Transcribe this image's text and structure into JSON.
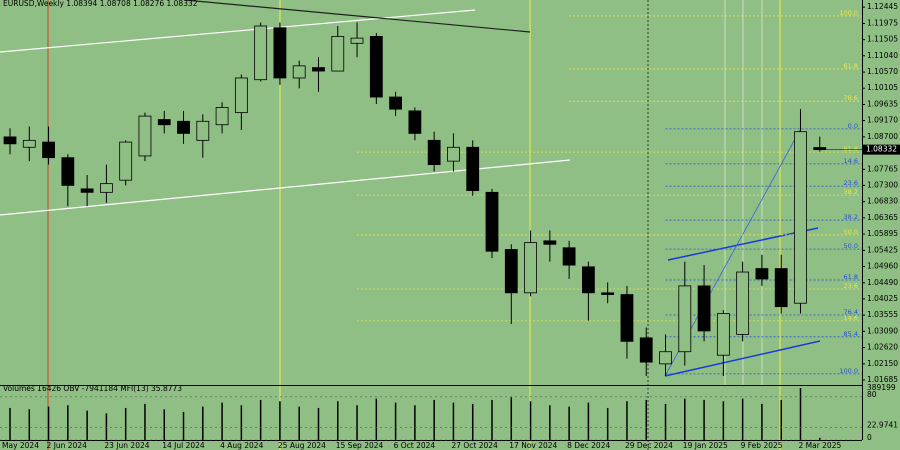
{
  "chart_data": {
    "type": "candlestick",
    "title": "EURUSD,Weekly  1.08394 1.08708 1.08276 1.08332",
    "indicator_label": "Volumes 16426  OBV -7941184  MFI(13) 35.8773",
    "partial_date_label": "May 2024",
    "categories": [
      null,
      null,
      "2 Jun 2024",
      null,
      null,
      "23 Jun 2024",
      null,
      null,
      "14 Jul 2024",
      null,
      null,
      "4 Aug 2024",
      null,
      null,
      "25 Aug 2024",
      null,
      null,
      "15 Sep 2024",
      null,
      null,
      "6 Oct 2024",
      null,
      null,
      "27 Oct 2024",
      null,
      null,
      "17 Nov 2024",
      null,
      null,
      "8 Dec 2024",
      null,
      null,
      "29 Dec 2024",
      null,
      null,
      "19 Jan 2025",
      null,
      null,
      "9 Feb 2025",
      null,
      null,
      "2 Mar 2025",
      null
    ],
    "open": [
      1.087,
      1.084,
      1.0855,
      1.081,
      1.072,
      1.071,
      1.0745,
      1.0815,
      1.092,
      1.0915,
      1.086,
      1.0905,
      1.094,
      1.1035,
      1.1185,
      1.104,
      1.107,
      1.106,
      1.114,
      1.116,
      1.0985,
      1.0945,
      1.086,
      1.08,
      1.084,
      1.071,
      1.0545,
      1.042,
      1.057,
      1.055,
      1.0495,
      1.042,
      1.0415,
      1.029,
      1.0215,
      1.025,
      1.044,
      1.024,
      1.03,
      1.049,
      1.049,
      1.039,
      1.08394
    ],
    "high": [
      1.0895,
      1.09,
      1.09,
      1.082,
      1.076,
      1.079,
      1.086,
      1.094,
      1.0945,
      1.0945,
      1.0935,
      1.097,
      1.105,
      1.12,
      1.12,
      1.109,
      1.11,
      1.119,
      1.12,
      1.117,
      1.1,
      1.0955,
      1.0885,
      1.088,
      1.086,
      1.072,
      1.056,
      1.06,
      1.06,
      1.057,
      1.051,
      1.045,
      1.044,
      1.032,
      1.03,
      1.051,
      1.05,
      1.037,
      1.051,
      1.053,
      1.053,
      1.095,
      1.08708
    ],
    "low": [
      1.082,
      1.08,
      1.079,
      1.067,
      1.067,
      1.068,
      1.073,
      1.08,
      1.088,
      1.085,
      1.081,
      1.088,
      1.089,
      1.103,
      1.102,
      1.101,
      1.1,
      1.106,
      1.11,
      1.0965,
      1.093,
      1.086,
      1.077,
      1.077,
      1.07,
      1.052,
      1.033,
      1.041,
      1.051,
      1.046,
      1.034,
      1.039,
      1.023,
      1.018,
      1.018,
      1.021,
      1.028,
      1.018,
      1.028,
      1.044,
      1.036,
      1.036,
      1.08276
    ],
    "close": [
      1.085,
      1.086,
      1.081,
      1.073,
      1.071,
      1.0735,
      1.0855,
      1.093,
      1.0905,
      1.088,
      1.0915,
      1.0955,
      1.104,
      1.119,
      1.104,
      1.1075,
      1.106,
      1.116,
      1.1155,
      1.0985,
      1.095,
      1.088,
      1.079,
      1.084,
      1.0715,
      1.054,
      1.042,
      1.0565,
      1.056,
      1.05,
      1.042,
      1.0415,
      1.028,
      1.022,
      1.025,
      1.044,
      1.031,
      1.036,
      1.048,
      1.046,
      1.038,
      1.0885,
      1.08332
    ],
    "up_color": "#8fbf84",
    "down_color": "#000000",
    "ylim": [
      1.0154,
      1.1265
    ],
    "yticks": [
      1.12445,
      1.11975,
      1.11505,
      {
        "value": 1.1104,
        "label": "1.11040"
      },
      {
        "value": 1.1057,
        "label": "1.10570"
      },
      1.10105,
      1.09635,
      {
        "value": 1.0917,
        "label": "1.09170"
      },
      {
        "value": 1.087,
        "label": "1.08700"
      },
      1.07765,
      {
        "value": 1.073,
        "label": "1.07300"
      },
      {
        "value": 1.0683,
        "label": "1.06830"
      },
      1.06365,
      1.05895,
      1.05425,
      {
        "value": 1.0496,
        "label": "1.04960"
      },
      {
        "value": 1.0449,
        "label": "1.04490"
      },
      1.04025,
      1.03555,
      {
        "value": 1.0309,
        "label": "1.03090"
      },
      {
        "value": 1.0262,
        "label": "1.02620"
      },
      {
        "value": 1.0215,
        "label": "1.02150"
      },
      1.01685
    ],
    "current_price": 1.08332,
    "fib_levels": [
      {
        "value": 1.1219,
        "label": "100.0",
        "color": "#e8e84a",
        "start": 29
      },
      {
        "value": 1.1066,
        "label": "61.8",
        "color": "#e8e84a",
        "start": 29
      },
      {
        "value": 1.0973,
        "label": "78.6",
        "color": "#e8e84a",
        "start": 29
      },
      {
        "value": 1.0893,
        "label": "0.0",
        "color": "#2850d8",
        "start": 34
      },
      {
        "value": 1.0826,
        "label": "61.8",
        "color": "#e8e84a",
        "start": 18
      },
      {
        "value": 1.0792,
        "label": "14.6",
        "color": "#2850d8",
        "start": 34
      },
      {
        "value": 1.0728,
        "label": "23.6",
        "color": "#2850d8",
        "start": 34
      },
      {
        "value": 1.0702,
        "label": "38.2",
        "color": "#e8e84a",
        "start": 18
      },
      {
        "value": 1.063,
        "label": "38.2",
        "color": "#2850d8",
        "start": 34
      },
      {
        "value": 1.0587,
        "label": "50.0",
        "color": "#e8e84a",
        "start": 18
      },
      {
        "value": 1.0546,
        "label": "50.0",
        "color": "#2850d8",
        "start": 34
      },
      {
        "value": 1.0457,
        "label": "61.8",
        "color": "#2850d8",
        "start": 34
      },
      {
        "value": 1.0431,
        "label": "23.6",
        "color": "#e8e84a",
        "start": 18
      },
      {
        "value": 1.0356,
        "label": "76.4",
        "color": "#2850d8",
        "start": 34
      },
      {
        "value": 1.0339,
        "label": "14.6",
        "color": "#e8e84a",
        "start": 18
      },
      {
        "value": 1.0293,
        "label": "85.4",
        "color": "#2850d8",
        "start": 34
      },
      {
        "value": 1.0186,
        "label": "100.0",
        "color": "#2850d8",
        "start": 34
      }
    ],
    "volume": [
      240000,
      230000,
      250000,
      260000,
      220000,
      200000,
      240000,
      270000,
      230000,
      210000,
      250000,
      280000,
      260000,
      300000,
      290000,
      250000,
      240000,
      290000,
      260000,
      310000,
      280000,
      260000,
      300000,
      280000,
      270000,
      300000,
      320000,
      290000,
      260000,
      250000,
      280000,
      240000,
      290000,
      300000,
      270000,
      310000,
      300000,
      290000,
      310000,
      270000,
      300000,
      389199,
      16426
    ],
    "volume_lim": [
      0,
      389199
    ],
    "volume_ticks": [
      389199
    ],
    "mfi_lim": [
      0,
      100
    ],
    "mfi_ticks": [
      0,
      22.9741,
      80
    ]
  }
}
